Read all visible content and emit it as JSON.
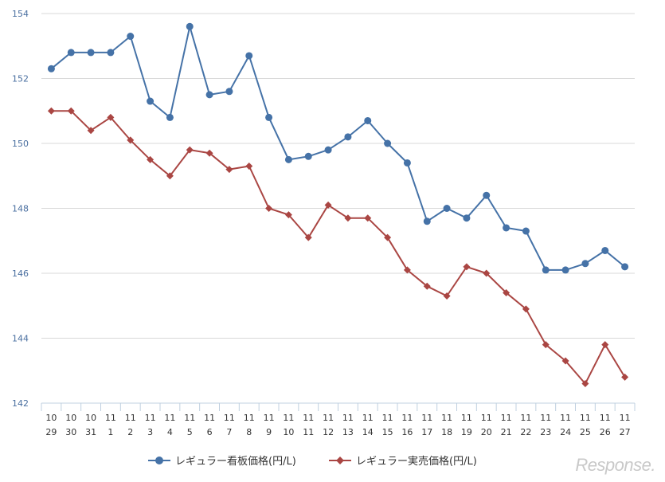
{
  "chart_data": {
    "type": "line",
    "categories": [
      [
        "10",
        "29"
      ],
      [
        "10",
        "30"
      ],
      [
        "10",
        "31"
      ],
      [
        "11",
        "1"
      ],
      [
        "11",
        "2"
      ],
      [
        "11",
        "3"
      ],
      [
        "11",
        "4"
      ],
      [
        "11",
        "5"
      ],
      [
        "11",
        "6"
      ],
      [
        "11",
        "7"
      ],
      [
        "11",
        "8"
      ],
      [
        "11",
        "9"
      ],
      [
        "11",
        "10"
      ],
      [
        "11",
        "11"
      ],
      [
        "11",
        "12"
      ],
      [
        "11",
        "13"
      ],
      [
        "11",
        "14"
      ],
      [
        "11",
        "15"
      ],
      [
        "11",
        "16"
      ],
      [
        "11",
        "17"
      ],
      [
        "11",
        "18"
      ],
      [
        "11",
        "19"
      ],
      [
        "11",
        "20"
      ],
      [
        "11",
        "21"
      ],
      [
        "11",
        "22"
      ],
      [
        "11",
        "23"
      ],
      [
        "11",
        "24"
      ],
      [
        "11",
        "25"
      ],
      [
        "11",
        "26"
      ],
      [
        "11",
        "27"
      ]
    ],
    "series": [
      {
        "name": "レギュラー看板価格(円/L)",
        "color": "#4572a7",
        "marker": "circle",
        "values": [
          152.3,
          152.8,
          152.8,
          152.8,
          153.3,
          151.3,
          150.8,
          153.6,
          151.5,
          151.6,
          152.7,
          150.8,
          149.5,
          149.6,
          149.8,
          150.2,
          150.7,
          150.0,
          149.4,
          147.6,
          148.0,
          147.7,
          148.4,
          147.4,
          147.3,
          146.1,
          146.1,
          146.3,
          146.7,
          146.2
        ]
      },
      {
        "name": "レギュラー実売価格(円/L)",
        "color": "#aa4643",
        "marker": "diamond",
        "values": [
          151.0,
          151.0,
          150.4,
          150.8,
          150.1,
          149.5,
          149.0,
          149.8,
          149.7,
          149.2,
          149.3,
          148.0,
          147.8,
          147.1,
          148.1,
          147.7,
          147.7,
          147.1,
          146.1,
          145.6,
          145.3,
          146.2,
          146.0,
          145.4,
          144.9,
          143.8,
          143.3,
          142.6,
          143.8,
          142.8
        ]
      }
    ],
    "ylim": [
      142,
      154
    ],
    "yticks": [
      142,
      144,
      146,
      148,
      150,
      152,
      154
    ],
    "grid": true,
    "legend_position": "bottom-center"
  },
  "watermark": "Response."
}
